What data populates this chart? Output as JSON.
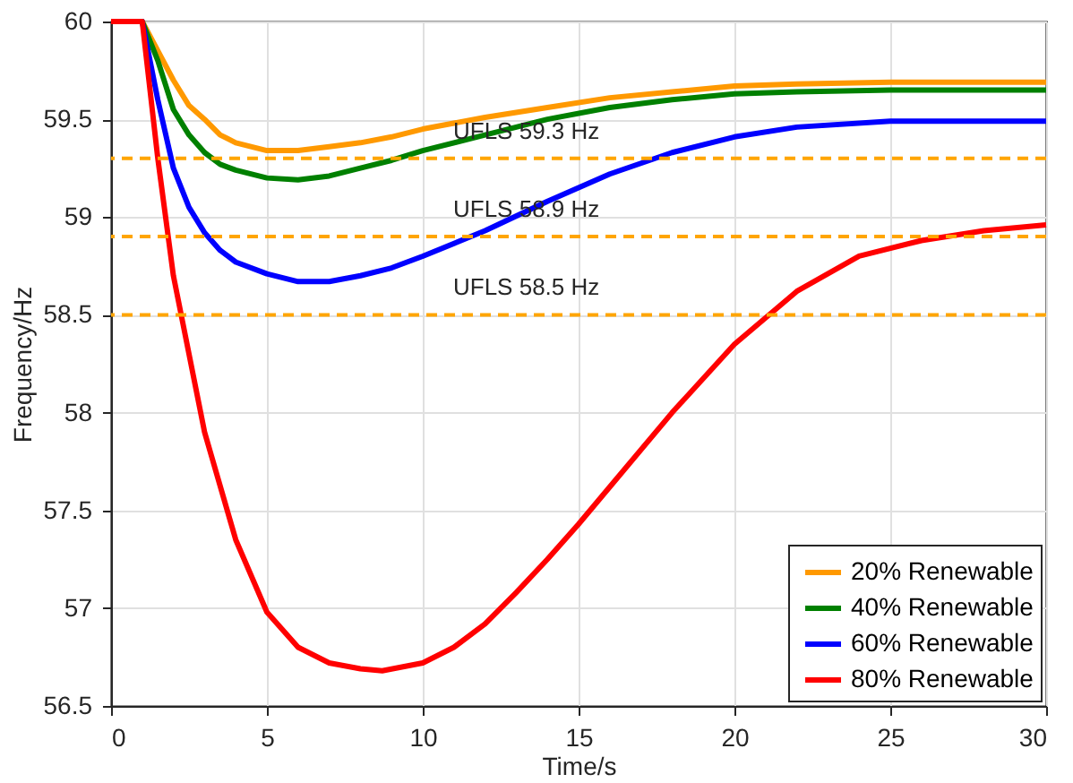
{
  "chart_data": {
    "type": "line",
    "xlabel": "Time/s",
    "ylabel": "Frequency/Hz",
    "xlim": [
      0,
      30
    ],
    "xticks": [
      0,
      5,
      10,
      15,
      20,
      25,
      30
    ],
    "ylim": [
      56.5,
      60
    ],
    "yticks": [
      56.5,
      57,
      57.5,
      58,
      58.5,
      59,
      59.5,
      60
    ],
    "grid": true,
    "legend": "bottom right",
    "line_style": "solid",
    "marker": "none",
    "x": [
      0,
      1,
      1.5,
      2,
      2.5,
      3,
      3.5,
      4,
      5,
      6,
      7,
      8,
      9,
      10,
      12,
      14,
      16,
      18,
      20,
      22,
      25,
      30
    ],
    "series": [
      {
        "name": "20% Renewable",
        "color": "#ff9900",
        "values": [
          60,
          60,
          59.85,
          59.7,
          59.57,
          59.5,
          59.42,
          59.38,
          59.34,
          59.34,
          59.36,
          59.38,
          59.41,
          59.45,
          59.51,
          59.56,
          59.61,
          59.64,
          59.67,
          59.68,
          59.69,
          59.69
        ]
      },
      {
        "name": "40% Renewable",
        "color": "#008000",
        "values": [
          60,
          60,
          59.8,
          59.55,
          59.42,
          59.33,
          59.27,
          59.24,
          59.2,
          59.19,
          59.21,
          59.25,
          59.29,
          59.34,
          59.42,
          59.5,
          59.56,
          59.6,
          59.63,
          59.64,
          59.65,
          59.65
        ]
      },
      {
        "name": "60% Renewable",
        "color": "#0000ff",
        "values": [
          60,
          60,
          59.6,
          59.25,
          59.05,
          58.92,
          58.83,
          58.77,
          58.71,
          58.67,
          58.67,
          58.7,
          58.74,
          58.8,
          58.93,
          59.08,
          59.22,
          59.33,
          59.41,
          59.46,
          59.49,
          59.49
        ]
      },
      {
        "name": "80% Renewable",
        "color": "#ff0000",
        "x": [
          0,
          1,
          1.5,
          2,
          3,
          4,
          5,
          6,
          7,
          8,
          8.7,
          10,
          11,
          12,
          13,
          14,
          15,
          16,
          18,
          20,
          22,
          24,
          26,
          28,
          30
        ],
        "values": [
          60,
          60,
          59.3,
          58.7,
          57.9,
          57.35,
          56.98,
          56.8,
          56.72,
          56.69,
          56.68,
          56.72,
          56.8,
          56.92,
          57.08,
          57.25,
          57.43,
          57.62,
          58.0,
          58.35,
          58.62,
          58.8,
          58.88,
          58.93,
          58.96
        ]
      }
    ],
    "ref_lines": [
      {
        "axis": "y",
        "value": 59.3,
        "color": "#ffa500",
        "line_style": "dashed",
        "label": "UFLS 59.3 Hz"
      },
      {
        "axis": "y",
        "value": 58.9,
        "color": "#ffa500",
        "line_style": "dashed",
        "label": "UFLS 58.9 Hz"
      },
      {
        "axis": "y",
        "value": 58.5,
        "color": "#ffa500",
        "line_style": "dashed",
        "label": "UFLS 58.5 Hz"
      }
    ]
  }
}
